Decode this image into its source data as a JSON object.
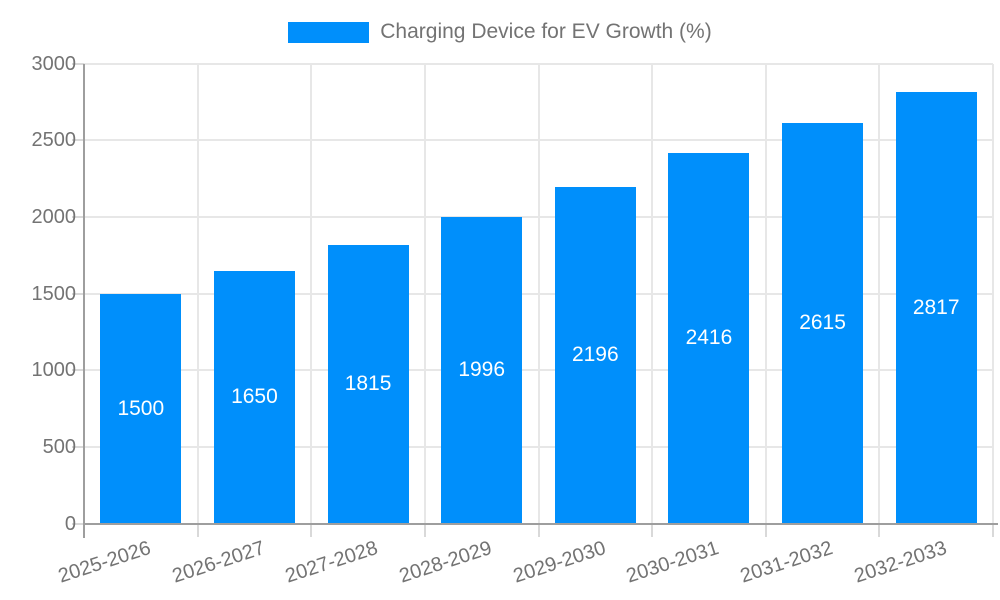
{
  "chart_data": {
    "type": "bar",
    "title": "Charging Device for EV Growth (%)",
    "categories": [
      "2025-2026",
      "2026-2027",
      "2027-2028",
      "2028-2029",
      "2029-2030",
      "2030-2031",
      "2031-2032",
      "2032-2033"
    ],
    "values": [
      1500,
      1650,
      1815,
      1996,
      2196,
      2416,
      2615,
      2817
    ],
    "xlabel": "",
    "ylabel": "",
    "ylim": [
      0,
      3000
    ],
    "yticks": [
      0,
      500,
      1000,
      1500,
      2000,
      2500,
      3000
    ],
    "grid": "on",
    "legend_position": "top",
    "data_labels": "inside-center",
    "colors": {
      "bar": "#008FFB",
      "bar_label": "#ffffff",
      "axis_text": "#737373",
      "gridline": "#e7e7e7",
      "tick": "#d9d9d9",
      "axis_line": "#9e9e9e",
      "background": "#ffffff"
    }
  }
}
